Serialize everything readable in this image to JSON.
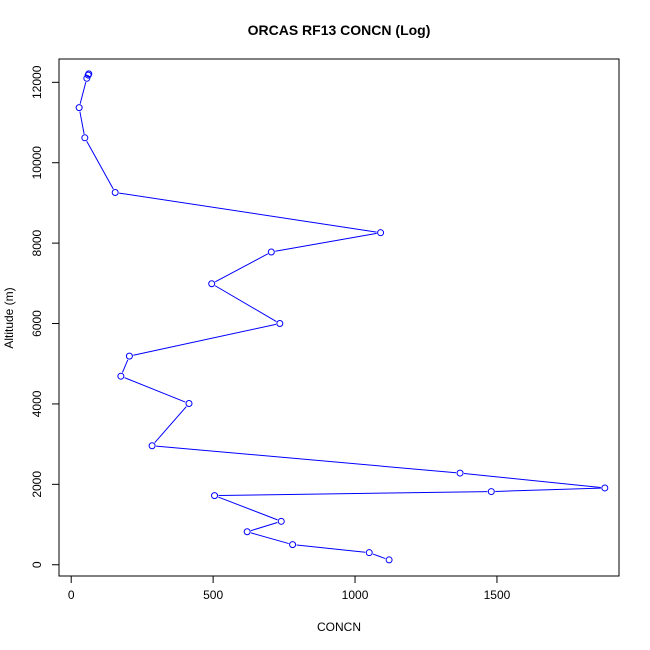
{
  "chart_data": {
    "type": "line",
    "title": "ORCAS RF13 CONCN (Log)",
    "xlabel": "CONCN",
    "ylabel": "Altitude (m)",
    "xlim": [
      -43,
      1930
    ],
    "ylim": [
      -280,
      12580
    ],
    "x_ticks": [
      0,
      500,
      1000,
      1500
    ],
    "y_ticks": [
      0,
      2000,
      4000,
      6000,
      8000,
      10000,
      12000
    ],
    "grid": false,
    "series_color": "#0000ff",
    "points": [
      {
        "x": 1120,
        "y": 120
      },
      {
        "x": 1050,
        "y": 300
      },
      {
        "x": 780,
        "y": 500
      },
      {
        "x": 620,
        "y": 820
      },
      {
        "x": 740,
        "y": 1080
      },
      {
        "x": 505,
        "y": 1720
      },
      {
        "x": 1480,
        "y": 1820
      },
      {
        "x": 1880,
        "y": 1910
      },
      {
        "x": 1370,
        "y": 2280
      },
      {
        "x": 285,
        "y": 2960
      },
      {
        "x": 415,
        "y": 4010
      },
      {
        "x": 175,
        "y": 4690
      },
      {
        "x": 205,
        "y": 5190
      },
      {
        "x": 735,
        "y": 6000
      },
      {
        "x": 495,
        "y": 6990
      },
      {
        "x": 705,
        "y": 7780
      },
      {
        "x": 1090,
        "y": 8260
      },
      {
        "x": 155,
        "y": 9260
      },
      {
        "x": 48,
        "y": 10620
      },
      {
        "x": 28,
        "y": 11370
      },
      {
        "x": 55,
        "y": 12100
      },
      {
        "x": 60,
        "y": 12180
      },
      {
        "x": 62,
        "y": 12210
      }
    ]
  }
}
